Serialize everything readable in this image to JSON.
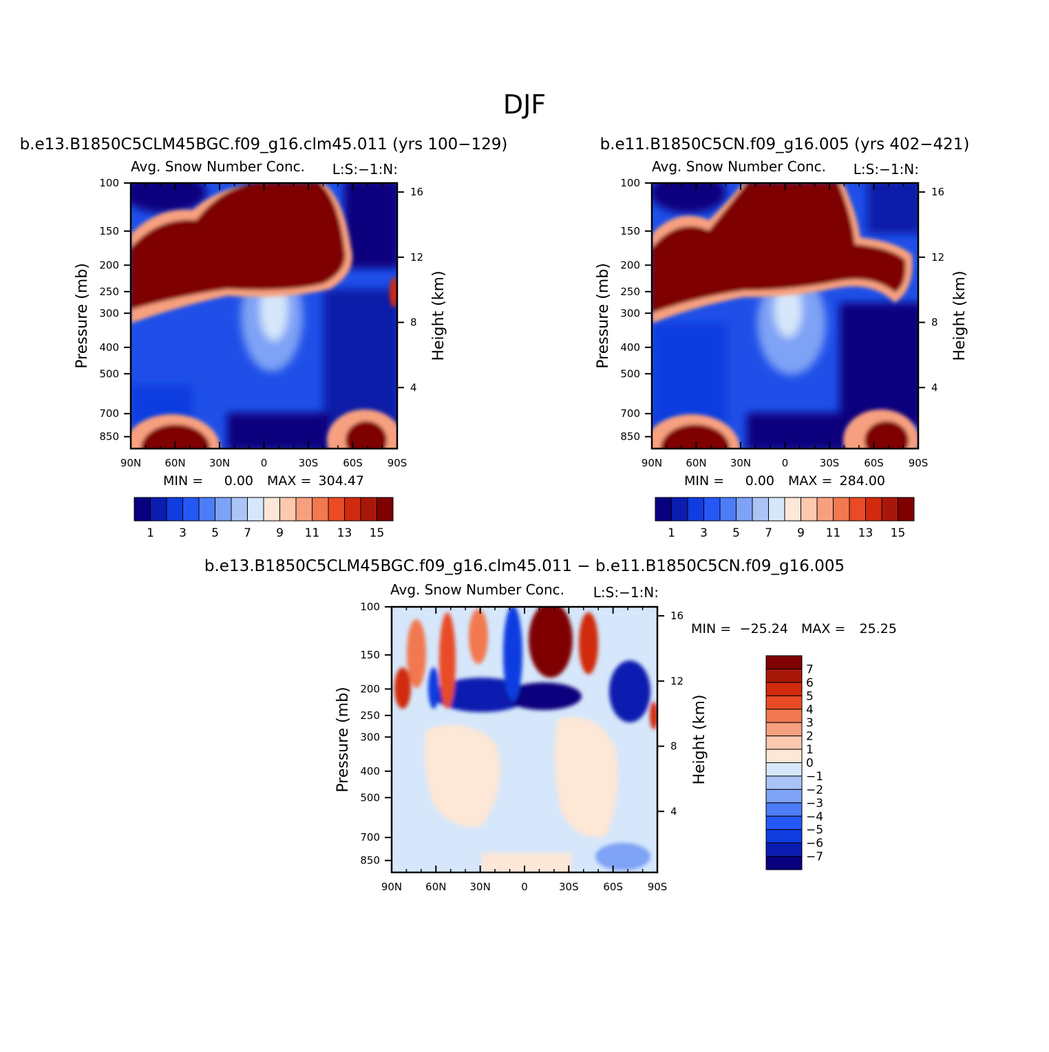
{
  "figure": {
    "title": "DJF"
  },
  "palette": {
    "positive": [
      "#08007e",
      "#0a1db0",
      "#0f3de0",
      "#2557f5",
      "#4d7cf7",
      "#7ea2f5",
      "#aac4f6",
      "#d6e7fb",
      "#fde7d6",
      "#fcc8ae",
      "#f7a07f",
      "#f27850",
      "#e84b26",
      "#d12a0e",
      "#a8180a",
      "#7f0000"
    ],
    "diff": [
      "#08007e",
      "#0a1db0",
      "#0f3de0",
      "#2557f5",
      "#4d7cf7",
      "#7ea2f5",
      "#aac4f6",
      "#d6e7fb",
      "#fde7d6",
      "#fcc8ae",
      "#f7a07f",
      "#f27850",
      "#e84b26",
      "#d12a0e",
      "#a8180a",
      "#7f0000"
    ]
  },
  "chart_data": [
    {
      "id": "case1",
      "type": "heatmap",
      "title": "b.e13.B1850C5CLM45BGC.f09_g16.clm45.011 (yrs 100−129)",
      "subtitle_left": "Avg. Snow Number Conc.",
      "subtitle_right": "L:S:−1:N:",
      "xlabel": "",
      "ylabel": "Pressure (mb)",
      "ylabel_right": "Height (km)",
      "x_tick_labels": [
        "90N",
        "60N",
        "30N",
        "0",
        "30S",
        "60S",
        "90S"
      ],
      "y_ticks": [
        100,
        150,
        200,
        250,
        300,
        400,
        500,
        700,
        850
      ],
      "y_right_ticks": [
        16,
        12,
        8,
        4
      ],
      "min_label": "MIN =",
      "min_value": "0.00",
      "max_label": "MAX =",
      "max_value": "304.47",
      "colorbar_labels": [
        "1",
        "3",
        "5",
        "7",
        "9",
        "11",
        "13",
        "15"
      ],
      "colorbar_levels": 16
    },
    {
      "id": "case2",
      "type": "heatmap",
      "title": "b.e11.B1850C5CN.f09_g16.005 (yrs 402−421)",
      "subtitle_left": "Avg. Snow Number Conc.",
      "subtitle_right": "L:S:−1:N:",
      "xlabel": "",
      "ylabel": "Pressure (mb)",
      "ylabel_right": "Height (km)",
      "x_tick_labels": [
        "90N",
        "60N",
        "30N",
        "0",
        "30S",
        "60S",
        "90S"
      ],
      "y_ticks": [
        100,
        150,
        200,
        250,
        300,
        400,
        500,
        700,
        850
      ],
      "y_right_ticks": [
        16,
        12,
        8,
        4
      ],
      "min_label": "MIN =",
      "min_value": "0.00",
      "max_label": "MAX =",
      "max_value": "284.00",
      "colorbar_labels": [
        "1",
        "3",
        "5",
        "7",
        "9",
        "11",
        "13",
        "15"
      ],
      "colorbar_levels": 16
    },
    {
      "id": "diff",
      "type": "heatmap",
      "title": "b.e13.B1850C5CLM45BGC.f09_g16.clm45.011 − b.e11.B1850C5CN.f09_g16.005",
      "subtitle_left": "Avg. Snow Number Conc.",
      "subtitle_right": "L:S:−1:N:",
      "xlabel": "",
      "ylabel": "Pressure (mb)",
      "ylabel_right": "Height (km)",
      "x_tick_labels": [
        "90N",
        "60N",
        "30N",
        "0",
        "30S",
        "60S",
        "90S"
      ],
      "y_ticks": [
        100,
        150,
        200,
        250,
        300,
        400,
        500,
        700,
        850
      ],
      "y_right_ticks": [
        16,
        12,
        8,
        4
      ],
      "min_label": "MIN =",
      "min_value": "−25.24",
      "max_label": "MAX =",
      "max_value": "25.25",
      "colorbar_labels": [
        "7",
        "6",
        "5",
        "4",
        "3",
        "2",
        "1",
        "0",
        "−1",
        "−2",
        "−3",
        "−4",
        "−5",
        "−6",
        "−7"
      ],
      "colorbar_levels": 16
    }
  ]
}
